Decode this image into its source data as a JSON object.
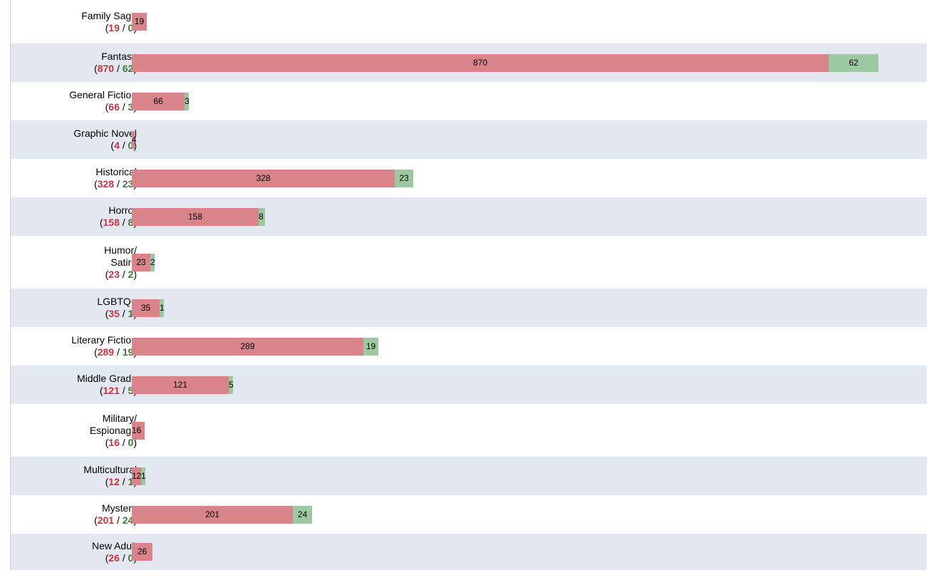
{
  "chart_data": {
    "type": "bar",
    "stacked": true,
    "orientation": "horizontal",
    "categories": [
      "Family Saga",
      "Fantasy",
      "General Fiction",
      "Graphic Novel",
      "Historical",
      "Horror",
      "Humor/ Satire",
      "LGBTQ+",
      "Literary Fiction",
      "Middle Grade",
      "Military/ Espionage",
      "Multicultural",
      "Mystery",
      "New Adult"
    ],
    "label_lines": [
      [
        "Family Saga"
      ],
      [
        "Fantasy"
      ],
      [
        "General Fiction"
      ],
      [
        "Graphic Novel"
      ],
      [
        "Historical"
      ],
      [
        "Horror"
      ],
      [
        "Humor/",
        "Satire"
      ],
      [
        "LGBTQ+"
      ],
      [
        "Literary Fiction"
      ],
      [
        "Middle Grade"
      ],
      [
        "Military/",
        "Espionage"
      ],
      [
        "Multicultural"
      ],
      [
        "Mystery"
      ],
      [
        "New Adult"
      ]
    ],
    "series": [
      {
        "color": "#d9838b",
        "values": [
          19,
          870,
          66,
          4,
          328,
          158,
          23,
          35,
          289,
          121,
          16,
          12,
          201,
          26
        ]
      },
      {
        "color": "#9cc9a2",
        "values": [
          0,
          62,
          3,
          0,
          23,
          8,
          2,
          1,
          19,
          5,
          0,
          1,
          24,
          0
        ]
      }
    ],
    "title": "",
    "xlabel": "",
    "ylabel": "",
    "grid": false,
    "legend": "none",
    "colors": {
      "count_red": "#c8333f",
      "count_green": "#3a7a3a",
      "row_stripe": "#e3e8f0"
    }
  }
}
